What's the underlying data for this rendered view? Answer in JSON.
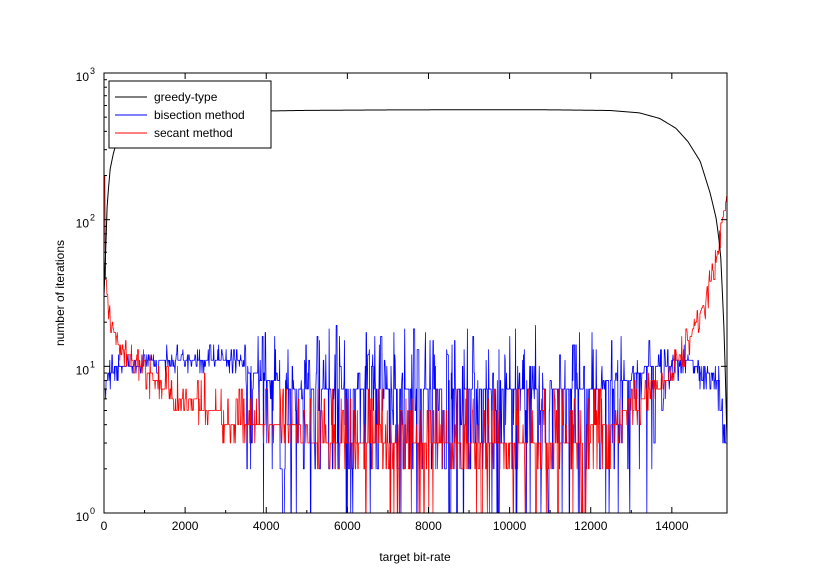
{
  "chart_data": {
    "type": "line",
    "title": "",
    "xlabel": "target bit-rate",
    "ylabel": "number of iterations",
    "xlim": [
      0,
      15360
    ],
    "ylim": [
      1,
      1000
    ],
    "y_scale": "log",
    "x_ticks": [
      0,
      2000,
      4000,
      6000,
      8000,
      10000,
      12000,
      14000
    ],
    "x_tick_labels": [
      "0",
      "2000",
      "4000",
      "6000",
      "8000",
      "10000",
      "12000",
      "14000"
    ],
    "y_ticks": [
      {
        "base": "10",
        "exp": "0",
        "value": 1
      },
      {
        "base": "10",
        "exp": "1",
        "value": 10
      },
      {
        "base": "10",
        "exp": "2",
        "value": 100
      },
      {
        "base": "10",
        "exp": "3",
        "value": 1000
      }
    ],
    "grid": false,
    "legend_position": "top-left",
    "series": [
      {
        "name": "greedy-type",
        "color": "#000000",
        "style": "smooth",
        "x": [
          0,
          40,
          80,
          150,
          250,
          400,
          600,
          900,
          1300,
          1800,
          2500,
          3500,
          5000,
          7000,
          9000,
          11000,
          12500,
          13200,
          13700,
          14100,
          14400,
          14700,
          14950,
          15100,
          15200,
          15280,
          15330,
          15360
        ],
        "y": [
          30,
          60,
          130,
          220,
          300,
          370,
          420,
          460,
          490,
          515,
          535,
          548,
          556,
          560,
          562,
          561,
          555,
          535,
          490,
          420,
          340,
          250,
          150,
          100,
          60,
          20,
          7,
          3
        ]
      },
      {
        "name": "bisection method",
        "color": "#0000ff",
        "style": "noisy",
        "x": [
          0,
          100,
          200,
          400,
          700,
          1000,
          1500,
          2000,
          2500,
          3000,
          3400,
          3600,
          4000,
          5000,
          6000,
          7000,
          8000,
          9000,
          10000,
          11000,
          12000,
          13000,
          13500,
          14000,
          14500,
          15000,
          15200,
          15360
        ],
        "y": [
          7,
          9,
          9.5,
          10,
          10,
          10.5,
          10.5,
          11,
          11,
          11,
          10.5,
          9,
          8,
          7,
          6.5,
          6.5,
          6.5,
          6.5,
          6.5,
          6.5,
          7,
          8.5,
          10,
          10.5,
          10.5,
          9,
          7,
          3
        ],
        "low": [
          4,
          6,
          7,
          8,
          8.5,
          9,
          9,
          9,
          9,
          9,
          8.5,
          1,
          1,
          1,
          1,
          1,
          1,
          1,
          1,
          1,
          1,
          1,
          1,
          8,
          8,
          6,
          4,
          2
        ],
        "high": [
          9,
          11,
          12,
          13,
          13,
          14,
          14,
          14,
          15,
          15,
          15,
          16,
          17,
          18,
          19,
          19,
          19,
          19,
          19,
          19,
          18,
          16,
          15,
          14,
          14,
          12,
          10,
          5
        ]
      },
      {
        "name": "secant method",
        "color": "#ff0000",
        "style": "noisy",
        "x": [
          0,
          30,
          80,
          150,
          300,
          500,
          800,
          1200,
          1700,
          2300,
          3000,
          4000,
          5000,
          6000,
          7000,
          8000,
          9000,
          10000,
          11000,
          12000,
          12500,
          13000,
          13500,
          14000,
          14400,
          14800,
          15100,
          15250,
          15360
        ],
        "y": [
          150,
          50,
          28,
          20,
          16,
          13,
          10.5,
          8.5,
          6.5,
          5.5,
          4.5,
          4,
          3.5,
          3.2,
          3.2,
          3.2,
          3.2,
          3.3,
          3.4,
          3.5,
          4,
          5,
          6.5,
          9,
          15,
          27,
          55,
          100,
          170
        ],
        "low": [
          100,
          35,
          20,
          15,
          12,
          10,
          8,
          6,
          5,
          4,
          3.3,
          3,
          2.2,
          2,
          1,
          1,
          1,
          1,
          1,
          1,
          2.5,
          3.2,
          4.5,
          6.5,
          11,
          20,
          40,
          75,
          130
        ],
        "high": [
          200,
          70,
          38,
          28,
          22,
          17,
          14,
          12,
          10,
          9,
          8.5,
          8,
          7.5,
          7.5,
          7.5,
          7.5,
          7.5,
          7.5,
          7.5,
          7.5,
          7.5,
          8,
          9,
          12,
          20,
          35,
          70,
          130,
          220
        ]
      }
    ]
  }
}
